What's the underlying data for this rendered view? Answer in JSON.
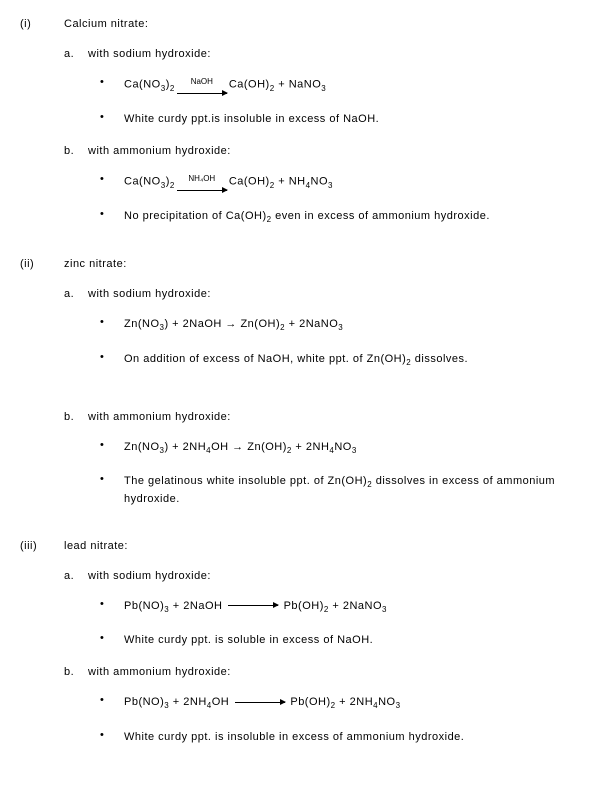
{
  "items": [
    {
      "num": "(i)",
      "title": "Calcium nitrate:",
      "subs": [
        {
          "letter": "a.",
          "title": "with sodium hydroxide:",
          "bullets": [
            {
              "type": "eq",
              "lhs": "Ca(NO",
              "lhs_sub": "3",
              "lhs2": ")",
              "lhs2_sub": "2",
              "arrow_label": "NaOH",
              "rhs": "Ca(OH)",
              "rhs_sub": "2",
              "plus": " + NaNO",
              "plus_sub": "3"
            },
            {
              "type": "text",
              "text": "White curdy ppt.is insoluble in excess of NaOH."
            }
          ]
        },
        {
          "letter": "b.",
          "title": "with ammonium hydroxide:",
          "bullets": [
            {
              "type": "eq",
              "lhs": "Ca(NO",
              "lhs_sub": "3",
              "lhs2": ")",
              "lhs2_sub": "2",
              "arrow_label": "NH₄OH",
              "rhs": "Ca(OH)",
              "rhs_sub": "2",
              "plus": " + NH",
              "plus_sub": "4",
              "plus2": "NO",
              "plus2_sub": "3"
            },
            {
              "type": "text_sub",
              "pre": "No precipitation of Ca(OH)",
              "sub": "2",
              "post": " even in excess of ammonium hydroxide."
            }
          ]
        }
      ]
    },
    {
      "num": "(ii)",
      "title": "zinc nitrate:",
      "subs": [
        {
          "letter": "a.",
          "title": "with sodium hydroxide:",
          "bullets": [
            {
              "type": "eq_simple",
              "text_parts": [
                "Zn(NO",
                "3",
                ") + 2NaOH → Zn(OH)",
                "2",
                " + 2NaNO",
                "3",
                ""
              ]
            },
            {
              "type": "text_sub",
              "pre": "On addition of excess of NaOH, white ppt. of Zn(OH)",
              "sub": "2",
              "post": " dissolves."
            }
          ],
          "extra_gap": true
        },
        {
          "letter": "b.",
          "title": "with ammonium hydroxide:",
          "bullets": [
            {
              "type": "eq_simple",
              "text_parts": [
                "Zn(NO",
                "3",
                ") + 2NH",
                "4",
                "OH → Zn(OH)",
                "2",
                " + 2NH",
                "4",
                "NO",
                "3",
                ""
              ]
            },
            {
              "type": "text_sub",
              "pre": "The gelatinous white insoluble ppt. of Zn(OH)",
              "sub": "2",
              "post": " dissolves in excess of ammonium hydroxide."
            }
          ]
        }
      ]
    },
    {
      "num": "(iii)",
      "title": "lead nitrate:",
      "subs": [
        {
          "letter": "a.",
          "title": "with sodium hydroxide:",
          "bullets": [
            {
              "type": "eq_long",
              "text_parts": [
                "Pb(NO)",
                "3",
                " +  2NaOH"
              ],
              "arrow": true,
              "rhs_parts": [
                " Pb(OH)",
                "2",
                "  + 2NaNO",
                "3",
                ""
              ]
            },
            {
              "type": "text",
              "text": "White curdy ppt. is soluble in excess of NaOH."
            }
          ]
        },
        {
          "letter": "b.",
          "title": "with ammonium hydroxide:",
          "bullets": [
            {
              "type": "eq_long",
              "text_parts": [
                "Pb(NO)",
                "3",
                " + 2NH",
                "4",
                "OH"
              ],
              "arrow": true,
              "rhs_parts": [
                " Pb(OH)",
                "2",
                "  + 2NH",
                "4",
                "NO",
                "3",
                ""
              ]
            },
            {
              "type": "text",
              "text": "White curdy ppt. is insoluble in excess of ammonium hydroxide."
            }
          ]
        }
      ]
    }
  ]
}
